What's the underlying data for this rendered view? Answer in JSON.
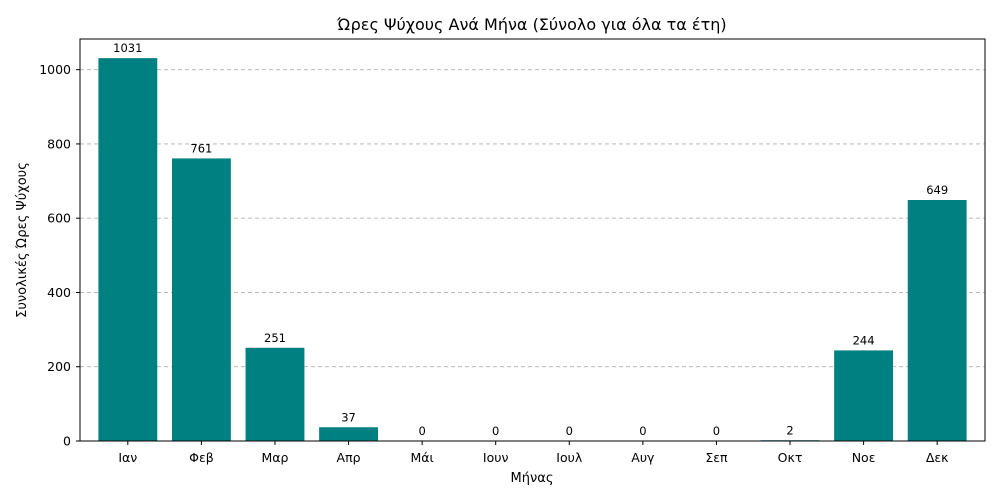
{
  "chart_data": {
    "type": "bar",
    "title": "Ώρες Ψύχους Ανά Μήνα (Σύνολο για όλα τα έτη)",
    "xlabel": "Μήνας",
    "ylabel": "Συνολικές Ώρες Ψύχους",
    "categories": [
      "Ιαν",
      "Φεβ",
      "Μαρ",
      "Απρ",
      "Μάι",
      "Ιουν",
      "Ιουλ",
      "Αυγ",
      "Σεπ",
      "Οκτ",
      "Νοε",
      "Δεκ"
    ],
    "values": [
      1031,
      761,
      251,
      37,
      0,
      0,
      0,
      0,
      0,
      2,
      244,
      649
    ],
    "ylim": [
      0,
      1082.55
    ],
    "yticks": [
      0,
      200,
      400,
      600,
      800,
      1000
    ],
    "grid": "y-dashed",
    "bar_color": "#008080",
    "data_labels": true
  }
}
